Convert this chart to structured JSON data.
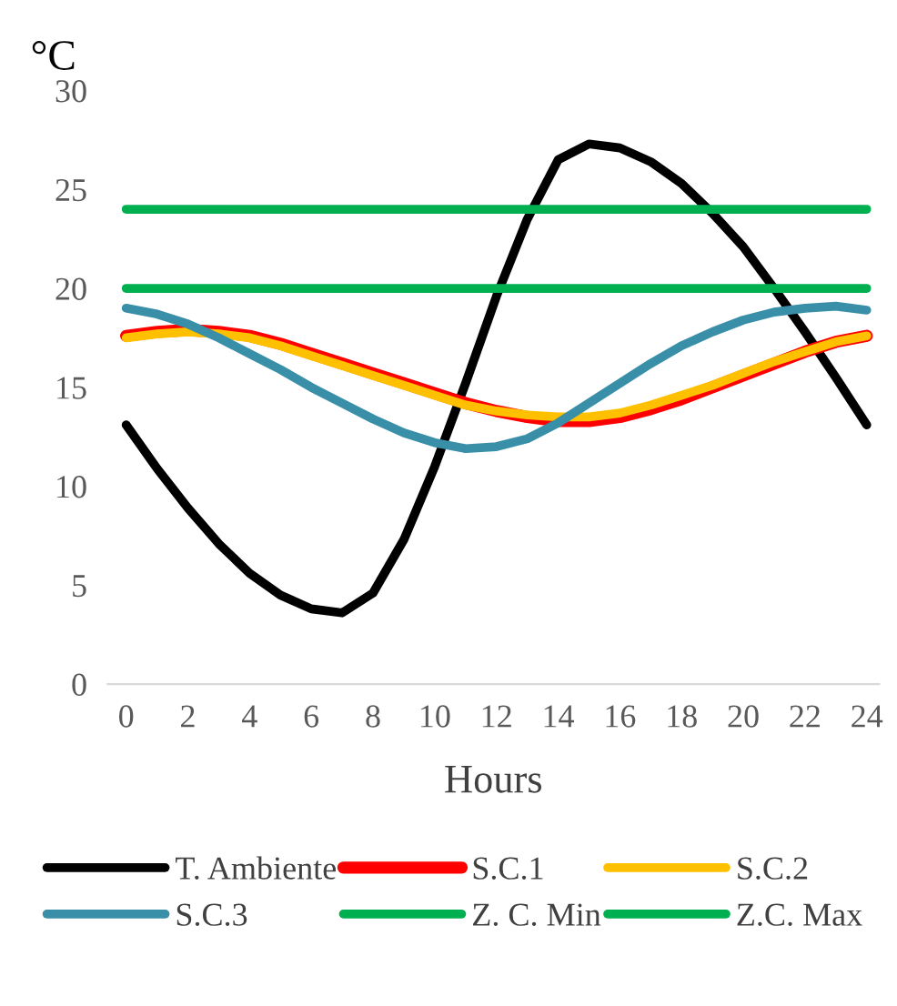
{
  "chart_data": {
    "type": "line",
    "ylabel": "°C",
    "xlabel": "Hours",
    "x": [
      0,
      1,
      2,
      3,
      4,
      5,
      6,
      7,
      8,
      9,
      10,
      11,
      12,
      13,
      14,
      15,
      16,
      17,
      18,
      19,
      20,
      21,
      22,
      23,
      24
    ],
    "series": [
      {
        "name": "T. Ambiente",
        "color": "#000000",
        "values": [
          13.1,
          10.9,
          8.9,
          7.1,
          5.6,
          4.5,
          3.8,
          3.6,
          4.6,
          7.3,
          11.0,
          15.2,
          19.6,
          23.5,
          26.5,
          27.3,
          27.1,
          26.4,
          25.3,
          23.8,
          22.1,
          20.0,
          17.8,
          15.5,
          13.1
        ]
      },
      {
        "name": "S.C.1",
        "color": "#ff0000",
        "values": [
          17.6,
          17.8,
          17.9,
          17.8,
          17.6,
          17.2,
          16.7,
          16.2,
          15.7,
          15.2,
          14.7,
          14.2,
          13.8,
          13.5,
          13.3,
          13.3,
          13.5,
          13.9,
          14.4,
          15.0,
          15.6,
          16.2,
          16.8,
          17.3,
          17.6
        ]
      },
      {
        "name": "S.C.2",
        "color": "#ffc000",
        "values": [
          17.5,
          17.7,
          17.8,
          17.7,
          17.5,
          17.1,
          16.6,
          16.1,
          15.6,
          15.1,
          14.6,
          14.1,
          13.8,
          13.6,
          13.5,
          13.5,
          13.7,
          14.1,
          14.6,
          15.1,
          15.7,
          16.3,
          16.8,
          17.3,
          17.6
        ]
      },
      {
        "name": "S.C.3",
        "color": "#3a8fa8",
        "values": [
          19.0,
          18.7,
          18.2,
          17.5,
          16.7,
          15.9,
          15.0,
          14.2,
          13.4,
          12.7,
          12.2,
          11.9,
          12.0,
          12.4,
          13.2,
          14.2,
          15.2,
          16.2,
          17.1,
          17.8,
          18.4,
          18.8,
          19.0,
          19.1,
          18.9
        ]
      },
      {
        "name": "Z. C. Min",
        "color": "#00b050",
        "values": [
          20,
          20,
          20,
          20,
          20,
          20,
          20,
          20,
          20,
          20,
          20,
          20,
          20,
          20,
          20,
          20,
          20,
          20,
          20,
          20,
          20,
          20,
          20,
          20,
          20
        ]
      },
      {
        "name": "Z.C. Max",
        "color": "#00b050",
        "values": [
          24,
          24,
          24,
          24,
          24,
          24,
          24,
          24,
          24,
          24,
          24,
          24,
          24,
          24,
          24,
          24,
          24,
          24,
          24,
          24,
          24,
          24,
          24,
          24,
          24
        ]
      }
    ],
    "xlim": [
      -0.6,
      24.4
    ],
    "xticks": [
      0,
      2,
      4,
      6,
      8,
      10,
      12,
      14,
      16,
      18,
      20,
      22,
      24
    ],
    "ylim": [
      0,
      30
    ],
    "yticks": [
      0,
      5,
      10,
      15,
      20,
      25,
      30
    ],
    "grid": false,
    "legend": "bottom",
    "marker": "none",
    "line_style": "solid"
  }
}
